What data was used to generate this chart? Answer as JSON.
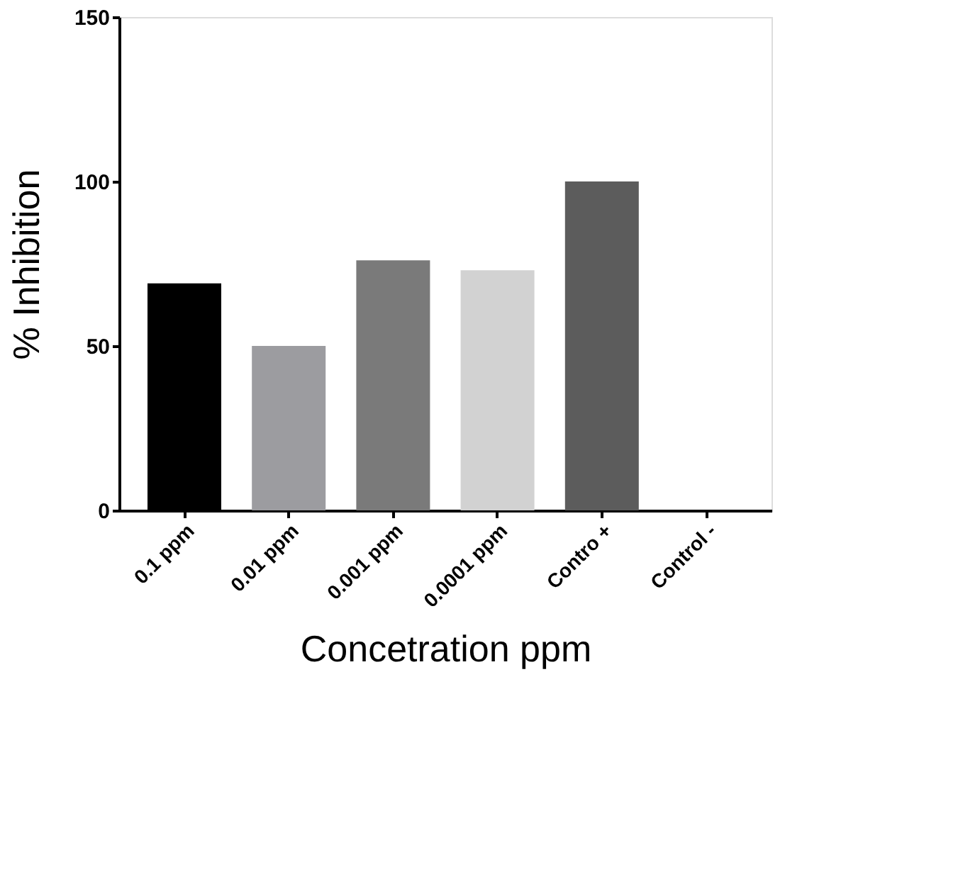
{
  "chart_data": {
    "type": "bar",
    "xlabel": "Concetration ppm",
    "ylabel": "% Inhibition",
    "categories": [
      "0.1 ppm",
      "0.01 ppm",
      "0.001 ppm",
      "0.0001 ppm",
      "Contro +",
      "Control -"
    ],
    "values": [
      69,
      50,
      76,
      73,
      100,
      0
    ],
    "colors": [
      "#000000",
      "#9c9ca0",
      "#7a7a7a",
      "#d2d2d2",
      "#5c5c5c",
      "#ffffff"
    ],
    "ylim": [
      0,
      150
    ],
    "yticks": [
      0,
      50,
      100,
      150
    ],
    "grid": false
  }
}
